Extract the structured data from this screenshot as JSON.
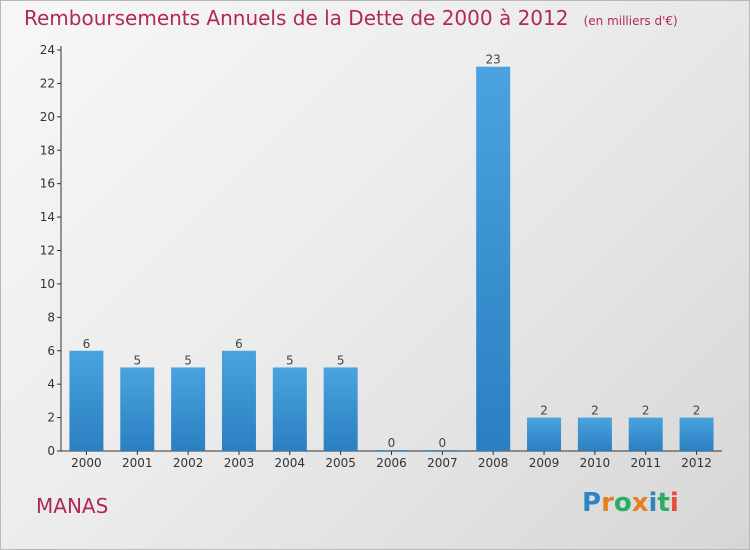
{
  "title": "Remboursements Annuels de la Dette de 2000 à 2012",
  "unit_note": "(en milliers d'€)",
  "place_name": "MANAS",
  "brand": {
    "letters": [
      "P",
      "r",
      "o",
      "x",
      "i",
      "t",
      "i"
    ],
    "colors": [
      "#2e86c1",
      "#e67e22",
      "#27ae60",
      "#e67e22",
      "#2e86c1",
      "#27ae60",
      "#e74c3c"
    ]
  },
  "colors": {
    "bar": "#4aa3df",
    "bar_dark": "#2a7fc0",
    "title": "#b0285a",
    "axis": "#333333"
  },
  "chart_data": {
    "type": "bar",
    "categories": [
      "2000",
      "2001",
      "2002",
      "2003",
      "2004",
      "2005",
      "2006",
      "2007",
      "2008",
      "2009",
      "2010",
      "2011",
      "2012"
    ],
    "values": [
      6,
      5,
      5,
      6,
      5,
      5,
      0,
      0,
      23,
      2,
      2,
      2,
      2
    ],
    "data_labels": [
      "6",
      "5",
      "5",
      "6",
      "5",
      "5",
      "0",
      "0",
      "23",
      "2",
      "2",
      "2",
      "2"
    ],
    "title": "Remboursements Annuels de la Dette de 2000 à 2012",
    "xlabel": "",
    "ylabel": "",
    "ylim": [
      0,
      24
    ],
    "yticks": [
      0,
      2,
      4,
      6,
      8,
      10,
      12,
      14,
      16,
      18,
      20,
      22,
      24
    ],
    "grid": false,
    "legend": "none"
  }
}
